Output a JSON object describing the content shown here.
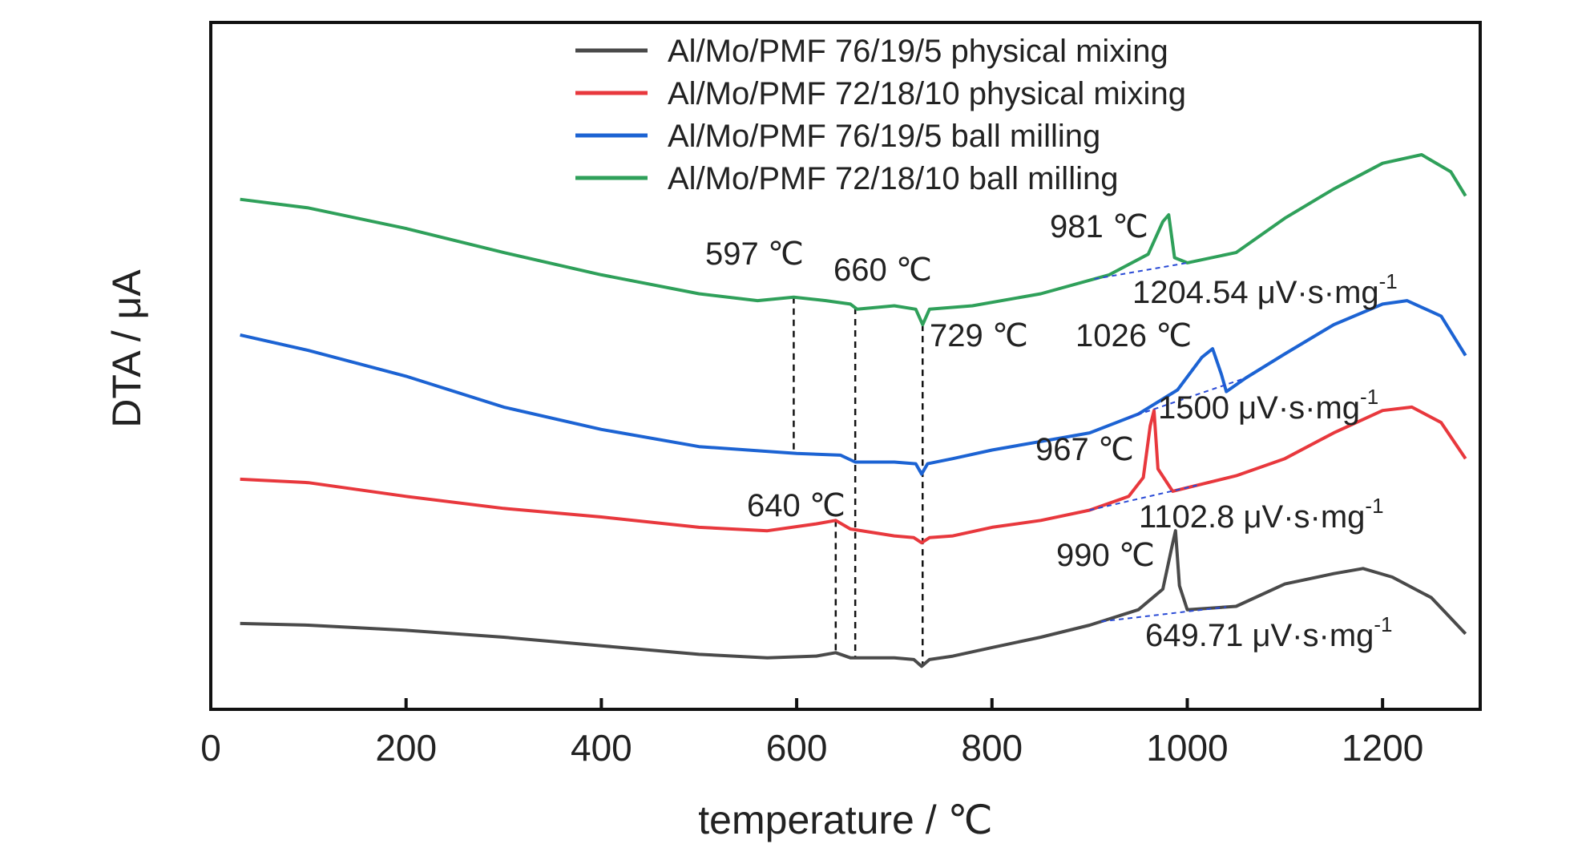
{
  "chart_data": {
    "type": "line",
    "title": "",
    "xlabel": "temperature / ℃",
    "ylabel": "DTA / μA",
    "xlim": [
      0,
      1300
    ],
    "xticks": [
      "0",
      "200",
      "400",
      "600",
      "800",
      "1000",
      "1200"
    ],
    "y_ticks_shown": false,
    "grid": false,
    "legend_position": "top-center",
    "series": [
      {
        "name": "Al/Mo/PMF 76/19/5 physical mixing",
        "color": "#4a4a4a",
        "points": [
          [
            30,
            50
          ],
          [
            100,
            49
          ],
          [
            200,
            46
          ],
          [
            300,
            42
          ],
          [
            400,
            37
          ],
          [
            500,
            32
          ],
          [
            570,
            30
          ],
          [
            620,
            31
          ],
          [
            640,
            33
          ],
          [
            655,
            30
          ],
          [
            700,
            30
          ],
          [
            720,
            29
          ],
          [
            728,
            25
          ],
          [
            736,
            29
          ],
          [
            760,
            31
          ],
          [
            800,
            36
          ],
          [
            850,
            42
          ],
          [
            900,
            49
          ],
          [
            950,
            58
          ],
          [
            975,
            70
          ],
          [
            984,
            94
          ],
          [
            988,
            104
          ],
          [
            992,
            72
          ],
          [
            1000,
            58
          ],
          [
            1050,
            60
          ],
          [
            1100,
            73
          ],
          [
            1150,
            79
          ],
          [
            1180,
            82
          ],
          [
            1210,
            77
          ],
          [
            1250,
            65
          ],
          [
            1285,
            44
          ]
        ]
      },
      {
        "name": "Al/Mo/PMF 72/18/10 physical mixing",
        "color": "#e8383d",
        "points": [
          [
            30,
            134
          ],
          [
            100,
            132
          ],
          [
            200,
            124
          ],
          [
            300,
            117
          ],
          [
            400,
            112
          ],
          [
            500,
            106
          ],
          [
            570,
            104
          ],
          [
            620,
            108
          ],
          [
            640,
            110
          ],
          [
            655,
            105
          ],
          [
            700,
            101
          ],
          [
            720,
            100
          ],
          [
            728,
            97
          ],
          [
            736,
            100
          ],
          [
            760,
            101
          ],
          [
            800,
            106
          ],
          [
            850,
            110
          ],
          [
            900,
            116
          ],
          [
            940,
            124
          ],
          [
            955,
            135
          ],
          [
            962,
            165
          ],
          [
            966,
            174
          ],
          [
            970,
            140
          ],
          [
            985,
            127
          ],
          [
            1050,
            136
          ],
          [
            1100,
            146
          ],
          [
            1150,
            161
          ],
          [
            1200,
            174
          ],
          [
            1230,
            176
          ],
          [
            1260,
            167
          ],
          [
            1285,
            146
          ]
        ]
      },
      {
        "name": "Al/Mo/PMF 76/19/5 ball milling",
        "color": "#1c63d3",
        "points": [
          [
            30,
            218
          ],
          [
            100,
            209
          ],
          [
            200,
            194
          ],
          [
            300,
            176
          ],
          [
            400,
            163
          ],
          [
            500,
            153
          ],
          [
            600,
            149
          ],
          [
            645,
            148
          ],
          [
            660,
            144
          ],
          [
            700,
            144
          ],
          [
            722,
            143
          ],
          [
            728,
            137
          ],
          [
            734,
            143
          ],
          [
            760,
            146
          ],
          [
            800,
            151
          ],
          [
            850,
            156
          ],
          [
            900,
            161
          ],
          [
            950,
            172
          ],
          [
            990,
            186
          ],
          [
            1015,
            205
          ],
          [
            1026,
            210
          ],
          [
            1035,
            195
          ],
          [
            1040,
            185
          ],
          [
            1060,
            193
          ],
          [
            1100,
            207
          ],
          [
            1150,
            224
          ],
          [
            1200,
            236
          ],
          [
            1225,
            238
          ],
          [
            1260,
            229
          ],
          [
            1285,
            206
          ]
        ]
      },
      {
        "name": "Al/Mo/PMF 72/18/10 ball milling",
        "color": "#2fa05a",
        "points": [
          [
            30,
            297
          ],
          [
            100,
            292
          ],
          [
            200,
            280
          ],
          [
            300,
            266
          ],
          [
            400,
            253
          ],
          [
            500,
            242
          ],
          [
            560,
            238
          ],
          [
            597,
            240
          ],
          [
            630,
            238
          ],
          [
            655,
            236
          ],
          [
            662,
            233
          ],
          [
            700,
            235
          ],
          [
            722,
            233
          ],
          [
            729,
            224
          ],
          [
            736,
            233
          ],
          [
            780,
            235
          ],
          [
            850,
            242
          ],
          [
            920,
            253
          ],
          [
            960,
            265
          ],
          [
            975,
            284
          ],
          [
            981,
            288
          ],
          [
            987,
            263
          ],
          [
            1000,
            260
          ],
          [
            1050,
            266
          ],
          [
            1100,
            286
          ],
          [
            1150,
            303
          ],
          [
            1200,
            318
          ],
          [
            1240,
            323
          ],
          [
            1270,
            313
          ],
          [
            1285,
            299
          ]
        ]
      }
    ],
    "peak_annotations": [
      {
        "label": "597 ℃",
        "x": 597
      },
      {
        "label": "660 ℃",
        "x": 660
      },
      {
        "label": "729 ℃",
        "x": 729
      },
      {
        "label": "981 ℃",
        "x": 981
      },
      {
        "label": "1026 ℃",
        "x": 1026
      },
      {
        "label": "967 ℃",
        "x": 967
      },
      {
        "label": "640 ℃",
        "x": 640
      },
      {
        "label": "990 ℃",
        "x": 990
      }
    ],
    "area_annotations": [
      {
        "label": "1204.54 μV·s·mg",
        "exponent": "-1"
      },
      {
        "label": "1500 μV·s·mg",
        "exponent": "-1"
      },
      {
        "label": "1102.8 μV·s·mg",
        "exponent": "-1"
      },
      {
        "label": "649.71 μV·s·mg",
        "exponent": "-1"
      }
    ]
  }
}
